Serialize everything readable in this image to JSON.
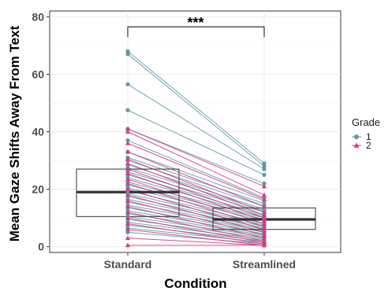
{
  "chart_data": {
    "type": "line",
    "subtype": "paired-points-with-boxplot",
    "title": "",
    "xlabel": "Condition",
    "ylabel": "Mean Gaze Shifts Away From Text",
    "categories": [
      "Standard",
      "Streamlined"
    ],
    "ylim": [
      -2,
      82
    ],
    "yticks": [
      0,
      20,
      40,
      60,
      80
    ],
    "grid": true,
    "legend": {
      "title": "Grade",
      "position": "right",
      "entries": [
        {
          "label": "1",
          "shape": "circle",
          "color": "#5f9aa0"
        },
        {
          "label": "2",
          "shape": "triangle",
          "color": "#d63a86"
        }
      ]
    },
    "significance": {
      "label": "***",
      "from": "Standard",
      "to": "Streamlined",
      "y": 76.5
    },
    "boxplots": [
      {
        "category": "Standard",
        "q1": 10.5,
        "median": 19,
        "q3": 27
      },
      {
        "category": "Streamlined",
        "q1": 6,
        "median": 9.5,
        "q3": 13.5
      }
    ],
    "series": [
      {
        "name": "1",
        "color": "#5f9aa0",
        "pairs": [
          [
            68,
            29
          ],
          [
            67,
            28
          ],
          [
            56.5,
            27
          ],
          [
            47.5,
            25
          ],
          [
            41,
            22
          ],
          [
            37,
            17
          ],
          [
            33,
            16
          ],
          [
            31,
            15
          ],
          [
            30,
            14
          ],
          [
            28.5,
            13
          ],
          [
            27.5,
            12.5
          ],
          [
            26,
            12
          ],
          [
            25,
            11
          ],
          [
            24,
            10.5
          ],
          [
            22.5,
            10
          ],
          [
            21.5,
            9.5
          ],
          [
            20.5,
            9
          ],
          [
            19.5,
            8
          ],
          [
            18.5,
            7.5
          ],
          [
            17.5,
            7
          ],
          [
            16.5,
            6.5
          ],
          [
            15.5,
            6
          ],
          [
            14.5,
            5.5
          ],
          [
            13.5,
            5
          ],
          [
            12.5,
            4.5
          ],
          [
            11.5,
            4
          ],
          [
            10.5,
            3.5
          ],
          [
            9.5,
            3
          ],
          [
            8.5,
            2.5
          ],
          [
            7.5,
            2
          ],
          [
            6.5,
            1.5
          ],
          [
            5,
            1
          ]
        ]
      },
      {
        "name": "2",
        "color": "#d63a86",
        "pairs": [
          [
            41,
            21
          ],
          [
            40,
            18
          ],
          [
            36,
            16.5
          ],
          [
            33,
            14
          ],
          [
            30.5,
            12
          ],
          [
            29,
            11
          ],
          [
            27,
            10
          ],
          [
            25.5,
            9
          ],
          [
            23.5,
            8
          ],
          [
            22,
            7
          ],
          [
            20,
            6
          ],
          [
            18,
            5
          ],
          [
            16,
            4
          ],
          [
            14,
            3
          ],
          [
            12,
            2
          ],
          [
            10,
            1.5
          ],
          [
            8,
            1
          ],
          [
            6,
            0.5
          ],
          [
            3,
            0.5
          ],
          [
            0.5,
            0.5
          ]
        ]
      }
    ]
  }
}
